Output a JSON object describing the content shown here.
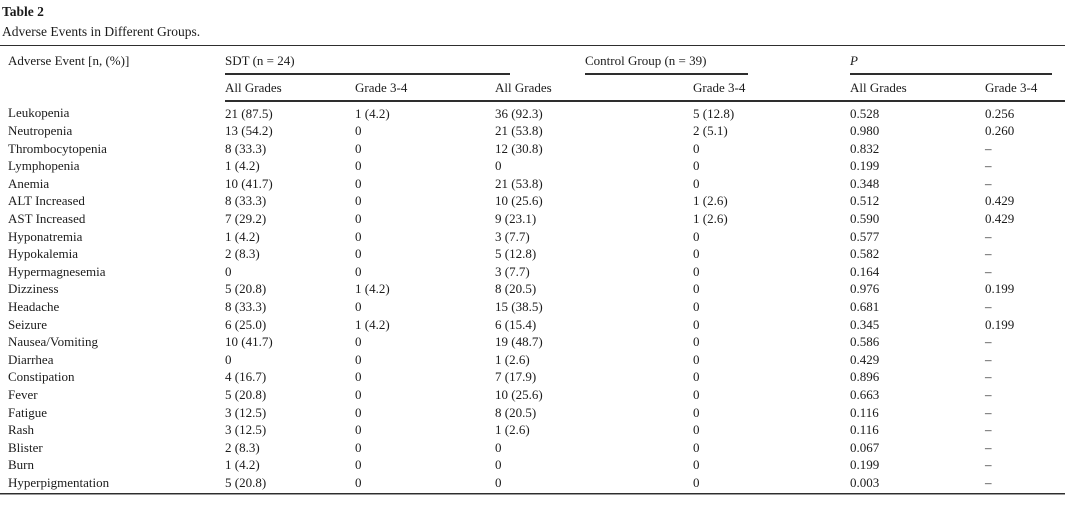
{
  "colors": {
    "text": "#1b1b1b",
    "rule": "#2e2e2e",
    "rule_light": "#9a9a9a"
  },
  "table": {
    "label": "Table 2",
    "caption": "Adverse Events in Different Groups.",
    "row_header": "Adverse Event [n, (%)]",
    "groups": [
      {
        "label": "SDT (n = 24)"
      },
      {
        "label": "Control Group (n = 39)"
      },
      {
        "label": "P"
      }
    ],
    "subheaders": [
      "All Grades",
      "Grade 3-4",
      "All Grades",
      "Grade 3-4",
      "All Grades",
      "Grade 3-4"
    ],
    "rows": [
      {
        "event": "Leukopenia",
        "sdt_all": "21 (87.5)",
        "sdt_g34": "1 (4.2)",
        "ctrl_all": "36 (92.3)",
        "ctrl_g34": "5 (12.8)",
        "p_all": "0.528",
        "p_g34": "0.256"
      },
      {
        "event": "Neutropenia",
        "sdt_all": "13 (54.2)",
        "sdt_g34": "0",
        "ctrl_all": "21 (53.8)",
        "ctrl_g34": "2 (5.1)",
        "p_all": "0.980",
        "p_g34": "0.260"
      },
      {
        "event": "Thrombocytopenia",
        "sdt_all": "8 (33.3)",
        "sdt_g34": "0",
        "ctrl_all": "12 (30.8)",
        "ctrl_g34": "0",
        "p_all": "0.832",
        "p_g34": "–"
      },
      {
        "event": "Lymphopenia",
        "sdt_all": "1 (4.2)",
        "sdt_g34": "0",
        "ctrl_all": "0",
        "ctrl_g34": "0",
        "p_all": "0.199",
        "p_g34": "–"
      },
      {
        "event": "Anemia",
        "sdt_all": "10 (41.7)",
        "sdt_g34": "0",
        "ctrl_all": "21 (53.8)",
        "ctrl_g34": "0",
        "p_all": "0.348",
        "p_g34": "–"
      },
      {
        "event": "ALT Increased",
        "sdt_all": "8 (33.3)",
        "sdt_g34": "0",
        "ctrl_all": "10 (25.6)",
        "ctrl_g34": "1 (2.6)",
        "p_all": "0.512",
        "p_g34": "0.429"
      },
      {
        "event": "AST Increased",
        "sdt_all": "7 (29.2)",
        "sdt_g34": "0",
        "ctrl_all": "9 (23.1)",
        "ctrl_g34": "1 (2.6)",
        "p_all": "0.590",
        "p_g34": "0.429"
      },
      {
        "event": "Hyponatremia",
        "sdt_all": "1 (4.2)",
        "sdt_g34": "0",
        "ctrl_all": "3 (7.7)",
        "ctrl_g34": "0",
        "p_all": "0.577",
        "p_g34": "–"
      },
      {
        "event": "Hypokalemia",
        "sdt_all": "2 (8.3)",
        "sdt_g34": "0",
        "ctrl_all": "5 (12.8)",
        "ctrl_g34": "0",
        "p_all": "0.582",
        "p_g34": "–"
      },
      {
        "event": "Hypermagnesemia",
        "sdt_all": "0",
        "sdt_g34": "0",
        "ctrl_all": "3 (7.7)",
        "ctrl_g34": "0",
        "p_all": "0.164",
        "p_g34": "–"
      },
      {
        "event": "Dizziness",
        "sdt_all": "5 (20.8)",
        "sdt_g34": "1 (4.2)",
        "ctrl_all": "8 (20.5)",
        "ctrl_g34": "0",
        "p_all": "0.976",
        "p_g34": "0.199"
      },
      {
        "event": "Headache",
        "sdt_all": "8 (33.3)",
        "sdt_g34": "0",
        "ctrl_all": "15 (38.5)",
        "ctrl_g34": "0",
        "p_all": "0.681",
        "p_g34": "–"
      },
      {
        "event": "Seizure",
        "sdt_all": "6 (25.0)",
        "sdt_g34": "1 (4.2)",
        "ctrl_all": "6 (15.4)",
        "ctrl_g34": "0",
        "p_all": "0.345",
        "p_g34": "0.199"
      },
      {
        "event": "Nausea/Vomiting",
        "sdt_all": "10 (41.7)",
        "sdt_g34": "0",
        "ctrl_all": "19 (48.7)",
        "ctrl_g34": "0",
        "p_all": "0.586",
        "p_g34": "–"
      },
      {
        "event": "Diarrhea",
        "sdt_all": "0",
        "sdt_g34": "0",
        "ctrl_all": "1 (2.6)",
        "ctrl_g34": "0",
        "p_all": "0.429",
        "p_g34": "–"
      },
      {
        "event": "Constipation",
        "sdt_all": "4 (16.7)",
        "sdt_g34": "0",
        "ctrl_all": "7 (17.9)",
        "ctrl_g34": "0",
        "p_all": "0.896",
        "p_g34": "–"
      },
      {
        "event": "Fever",
        "sdt_all": "5 (20.8)",
        "sdt_g34": "0",
        "ctrl_all": "10 (25.6)",
        "ctrl_g34": "0",
        "p_all": "0.663",
        "p_g34": "–"
      },
      {
        "event": "Fatigue",
        "sdt_all": "3 (12.5)",
        "sdt_g34": "0",
        "ctrl_all": "8 (20.5)",
        "ctrl_g34": "0",
        "p_all": "0.116",
        "p_g34": "–"
      },
      {
        "event": "Rash",
        "sdt_all": "3 (12.5)",
        "sdt_g34": "0",
        "ctrl_all": "1 (2.6)",
        "ctrl_g34": "0",
        "p_all": "0.116",
        "p_g34": "–"
      },
      {
        "event": "Blister",
        "sdt_all": "2 (8.3)",
        "sdt_g34": "0",
        "ctrl_all": "0",
        "ctrl_g34": "0",
        "p_all": "0.067",
        "p_g34": "–"
      },
      {
        "event": "Burn",
        "sdt_all": "1 (4.2)",
        "sdt_g34": "0",
        "ctrl_all": "0",
        "ctrl_g34": "0",
        "p_all": "0.199",
        "p_g34": "–"
      },
      {
        "event": "Hyperpigmentation",
        "sdt_all": "5 (20.8)",
        "sdt_g34": "0",
        "ctrl_all": "0",
        "ctrl_g34": "0",
        "p_all": "0.003",
        "p_g34": "–"
      }
    ]
  }
}
